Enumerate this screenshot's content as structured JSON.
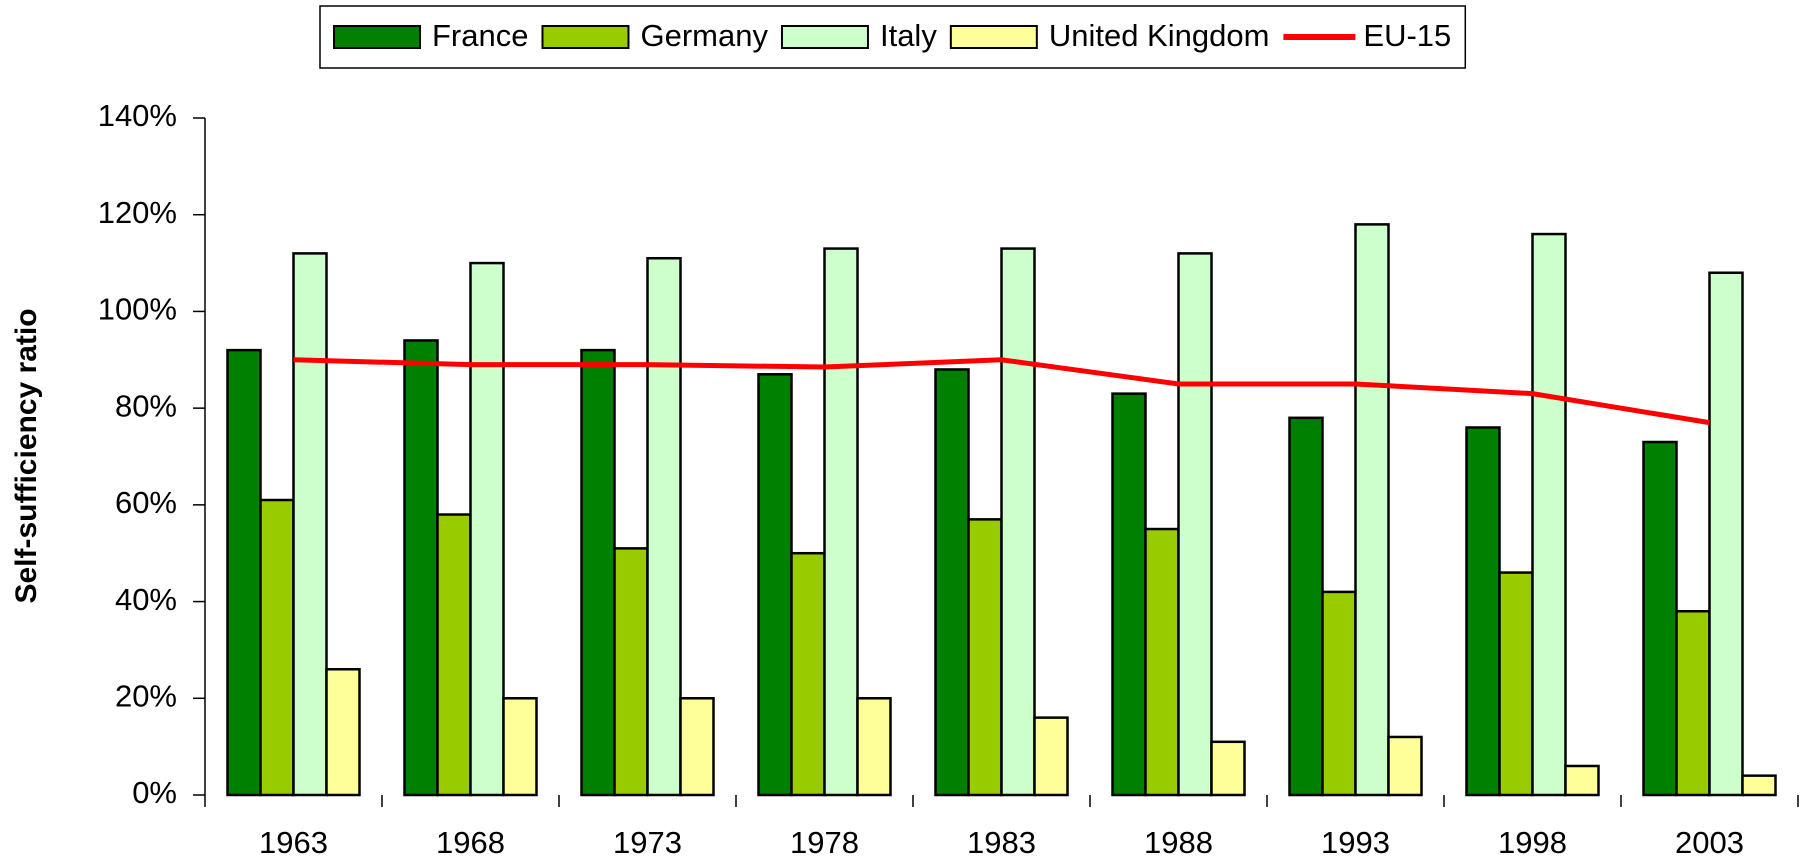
{
  "chart_data": {
    "type": "bar",
    "y_label": "Self-sufficiency ratio",
    "categories": [
      "1963",
      "1968",
      "1973",
      "1978",
      "1983",
      "1988",
      "1993",
      "1998",
      "2003"
    ],
    "series": [
      {
        "name": "France",
        "color": "#008000",
        "values": [
          92,
          94,
          92,
          87,
          88,
          83,
          78,
          76,
          73
        ]
      },
      {
        "name": "Germany",
        "color": "#99cc00",
        "values": [
          61,
          58,
          51,
          50,
          57,
          55,
          42,
          46,
          38
        ]
      },
      {
        "name": "Italy",
        "color": "#ccffcc",
        "values": [
          112,
          110,
          111,
          113,
          113,
          112,
          118,
          116,
          108
        ]
      },
      {
        "name": "United Kingdom",
        "color": "#ffff99",
        "values": [
          26,
          20,
          20,
          20,
          16,
          11,
          12,
          6,
          4
        ]
      },
      {
        "name": "EU-15",
        "color": "#ff0000",
        "type": "line",
        "values": [
          90,
          89,
          89,
          88.5,
          90,
          85,
          85,
          83,
          77
        ]
      }
    ],
    "ylim": [
      0,
      140
    ],
    "yticks": [
      {
        "value": 0,
        "label": "0%"
      },
      {
        "value": 20,
        "label": "20%"
      },
      {
        "value": 40,
        "label": "40%"
      },
      {
        "value": 60,
        "label": "60%"
      },
      {
        "value": 80,
        "label": "80%"
      },
      {
        "value": 100,
        "label": "100%"
      },
      {
        "value": 120,
        "label": "120%"
      },
      {
        "value": 140,
        "label": "140%"
      }
    ],
    "legend": "top"
  }
}
